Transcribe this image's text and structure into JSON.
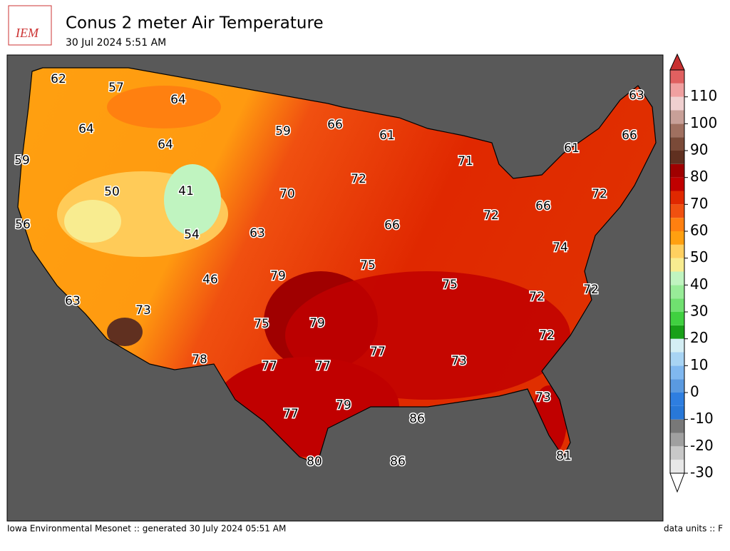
{
  "header": {
    "logo_text": "IEM",
    "title": "Conus 2 meter Air Temperature",
    "subtitle": "30 Jul 2024 5:51 AM"
  },
  "map": {
    "labels": [
      62,
      57,
      64,
      64,
      64,
      59,
      59,
      66,
      61,
      50,
      41,
      70,
      72,
      71,
      56,
      54,
      63,
      66,
      72,
      66,
      74,
      72,
      61,
      63,
      66,
      46,
      79,
      75,
      75,
      72,
      72,
      63,
      73,
      75,
      79,
      77,
      73,
      72,
      78,
      77,
      77,
      77,
      79,
      86,
      73,
      80,
      86,
      81
    ]
  },
  "colorbar": {
    "lim": [
      -30,
      120
    ],
    "step": 5,
    "colors": [
      "#e8e8e8",
      "#c8c8c8",
      "#a0a0a0",
      "#787878",
      "#2878d8",
      "#2e7ee0",
      "#5a9ae0",
      "#80b8f0",
      "#a8d4f4",
      "#d4eef4",
      "#18a018",
      "#40d040",
      "#70e070",
      "#98ec98",
      "#c0f4c0",
      "#f8ec90",
      "#ffd060",
      "#ffa010",
      "#ff8010",
      "#f05010",
      "#e02800",
      "#c00000",
      "#a00000",
      "#603020",
      "#7a4a38",
      "#a07060",
      "#c8a098",
      "#f0d0d0",
      "#f0a0a0",
      "#e06060"
    ],
    "over_color": "#c83030",
    "under_color": "#ffffff",
    "ticks": [
      -30,
      -20,
      -10,
      0,
      10,
      20,
      30,
      40,
      50,
      60,
      70,
      80,
      90,
      100,
      110
    ]
  },
  "footer": {
    "left": "Iowa Environmental Mesonet :: generated 30 July 2024 05:51 AM",
    "right": "data units :: F"
  }
}
